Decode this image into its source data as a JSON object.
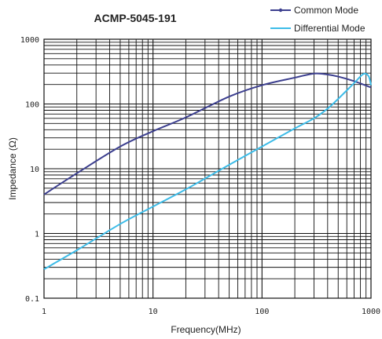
{
  "chart_data": {
    "type": "line",
    "title": "ACMP-5045-191",
    "xlabel": "Frequency(MHz)",
    "ylabel": "Impedance (Ω)",
    "x_scale": "log",
    "y_scale": "log",
    "xlim": [
      1,
      1000
    ],
    "ylim": [
      0.1,
      1000
    ],
    "x_ticks": [
      "1",
      "10",
      "100",
      "1000"
    ],
    "y_ticks": [
      "0.1",
      "1",
      "10",
      "100",
      "1000"
    ],
    "grid": true,
    "legend_position": "top-right",
    "series": [
      {
        "name": "Common Mode",
        "color": "#3c3f8f",
        "points": [
          [
            1,
            4
          ],
          [
            2,
            8.5
          ],
          [
            5,
            22
          ],
          [
            10,
            38
          ],
          [
            20,
            62
          ],
          [
            50,
            130
          ],
          [
            100,
            195
          ],
          [
            200,
            255
          ],
          [
            300,
            295
          ],
          [
            400,
            285
          ],
          [
            500,
            265
          ],
          [
            700,
            225
          ],
          [
            1000,
            180
          ]
        ]
      },
      {
        "name": "Differential Mode",
        "color": "#3dbce8",
        "points": [
          [
            1,
            0.28
          ],
          [
            2,
            0.55
          ],
          [
            5,
            1.4
          ],
          [
            10,
            2.6
          ],
          [
            20,
            4.8
          ],
          [
            50,
            11.5
          ],
          [
            100,
            22
          ],
          [
            200,
            42
          ],
          [
            300,
            60
          ],
          [
            400,
            85
          ],
          [
            500,
            120
          ],
          [
            700,
            210
          ],
          [
            850,
            290
          ],
          [
            950,
            270
          ],
          [
            1000,
            195
          ]
        ]
      }
    ]
  }
}
